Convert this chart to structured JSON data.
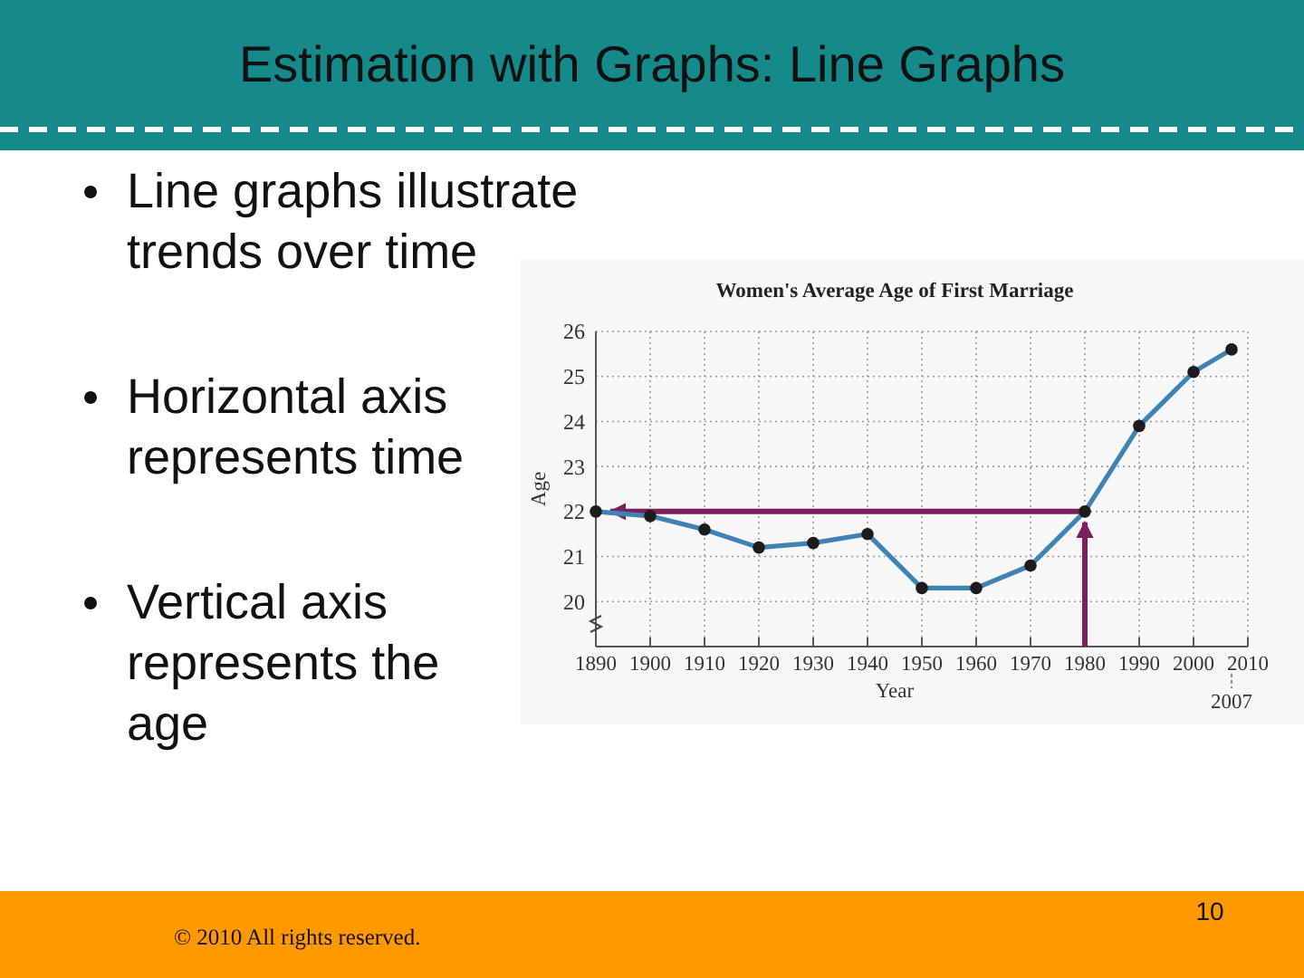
{
  "chart_data": {
    "type": "line",
    "title": "Women's Average Age of First Marriage",
    "xlabel": "Year",
    "ylabel": "Age",
    "x": [
      1890,
      1900,
      1910,
      1920,
      1930,
      1940,
      1950,
      1960,
      1970,
      1980,
      1990,
      2000,
      2007
    ],
    "series": [
      {
        "color": "#3f82b4",
        "values": [
          22.0,
          21.9,
          21.6,
          21.2,
          21.3,
          21.5,
          20.3,
          20.3,
          20.8,
          22.0,
          23.9,
          25.1,
          25.6
        ]
      }
    ],
    "xlim": [
      1890,
      2010
    ],
    "xticks": [
      1890,
      1900,
      1910,
      1920,
      1930,
      1940,
      1950,
      1960,
      1970,
      1980,
      1990,
      2000,
      2010
    ],
    "ylim": [
      19,
      26
    ],
    "yticks": [
      20,
      21,
      22,
      23,
      24,
      25,
      26
    ],
    "grid": true,
    "marker": "circle",
    "line_style": "solid",
    "ref_lines": [
      {
        "axis": "y",
        "value": 22,
        "color": "#7b1f5e"
      },
      {
        "axis": "x",
        "value": 1980,
        "color": "#7b1f5e"
      }
    ],
    "annotations": [
      "Estimation with Graphs: Line Graphs",
      "Line graphs illustrate trends over time",
      "Horizontal axis represents time",
      "Vertical axis represents the age",
      "© 2010 All rights reserved.",
      "10",
      "2007"
    ]
  }
}
